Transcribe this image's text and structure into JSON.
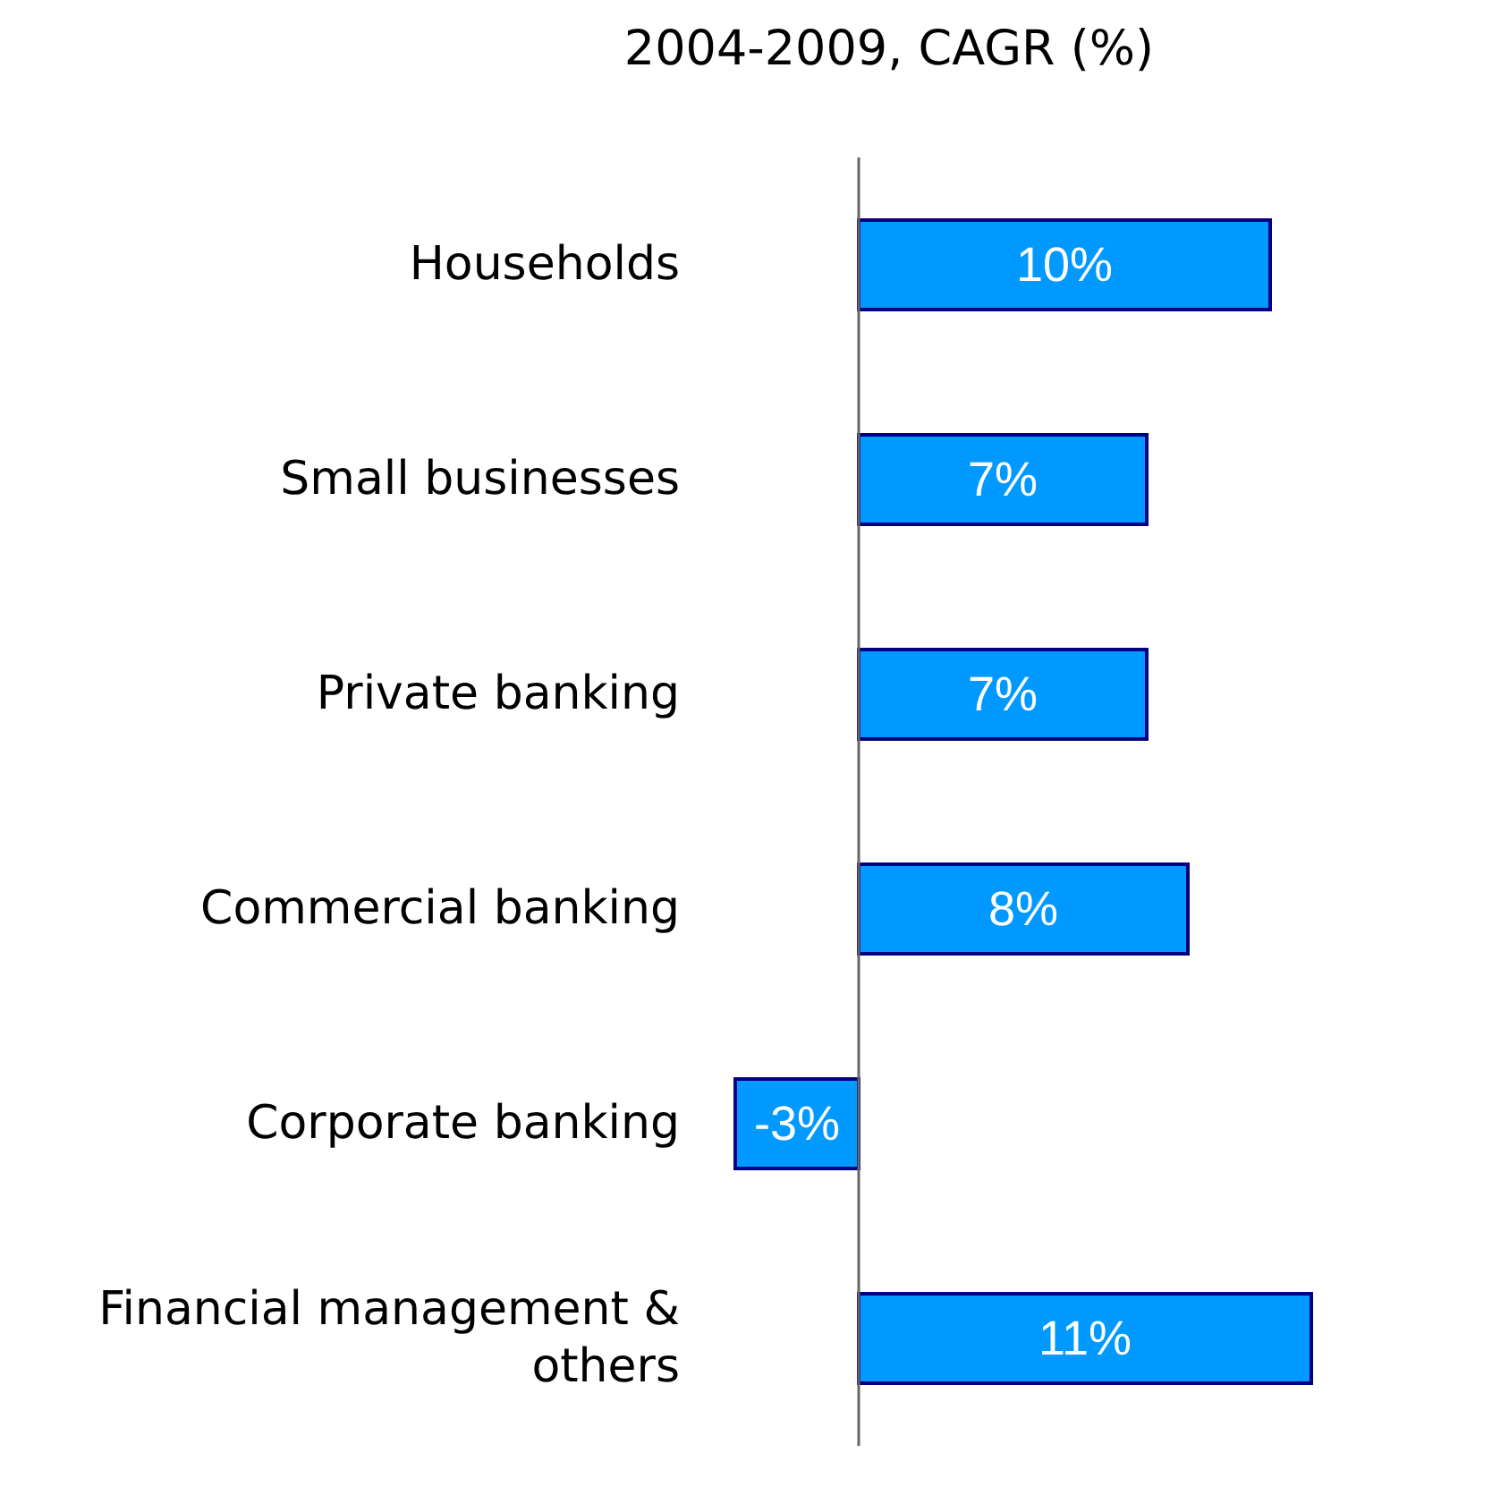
{
  "chart_data": {
    "type": "bar",
    "orientation": "horizontal",
    "title": "2004-2009, CAGR (%)",
    "categories": [
      "Households",
      "Small businesses",
      "Private banking",
      "Commercial banking",
      "Corporate banking",
      "Financial management & others"
    ],
    "values": [
      10,
      7,
      7,
      8,
      -3,
      11
    ],
    "value_labels": [
      "10%",
      "7%",
      "7%",
      "8%",
      "-3%",
      "11%"
    ],
    "color": "#0099ff"
  }
}
